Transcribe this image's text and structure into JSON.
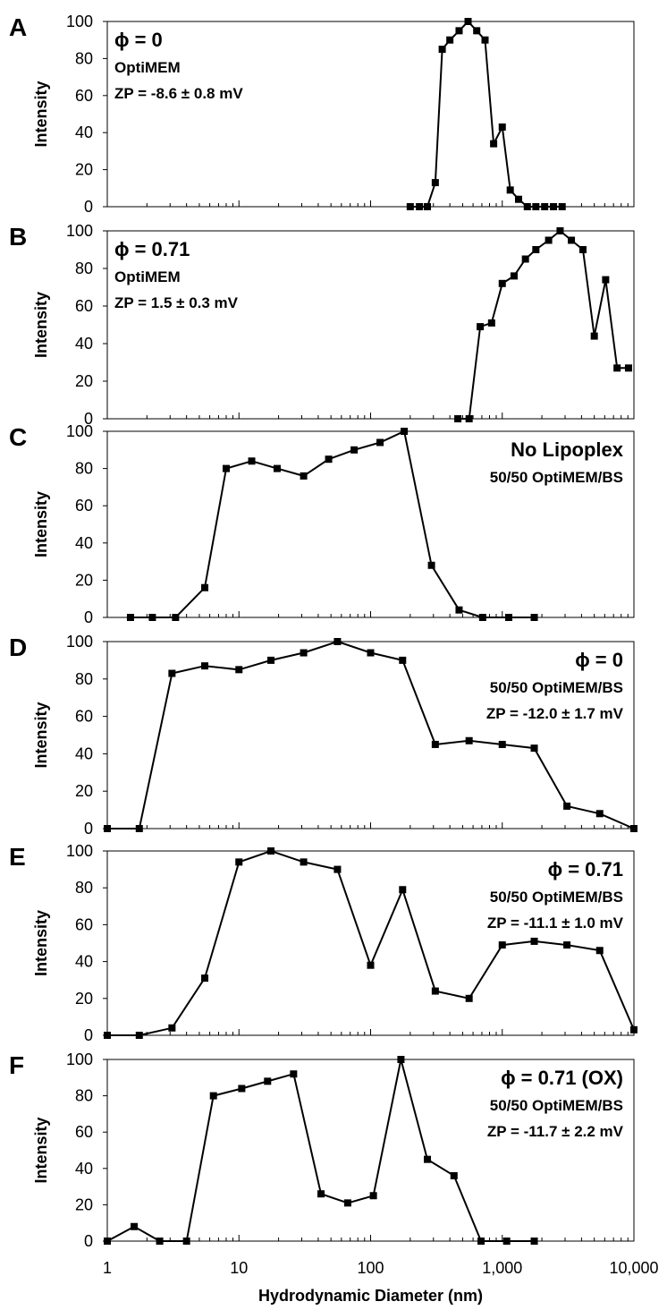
{
  "chart_data": [
    {
      "type": "line",
      "panel_label": "A",
      "ylabel": "Intensity",
      "ylim": [
        0,
        100
      ],
      "yticks": [
        "0",
        "20",
        "40",
        "60",
        "80",
        "100"
      ],
      "xscale": "log",
      "xlim": [
        1,
        10000
      ],
      "legend": null,
      "annotations": [
        "ϕ = 0",
        "OptiMEM",
        "ZP = -8.6 ± 0.8 mV"
      ],
      "annotation_align": "left",
      "series": [
        {
          "x": [
            200,
            235,
            270,
            310,
            350,
            400,
            470,
            550,
            640,
            740,
            860,
            1000,
            1150,
            1330,
            1550,
            1800,
            2100,
            2450,
            2850
          ],
          "y": [
            0,
            0,
            0,
            13,
            85,
            90,
            95,
            100,
            95,
            90,
            34,
            43,
            9,
            4,
            0,
            0,
            0,
            0,
            0
          ]
        }
      ]
    },
    {
      "type": "line",
      "panel_label": "B",
      "ylabel": "Intensity",
      "ylim": [
        0,
        100
      ],
      "yticks": [
        "0",
        "20",
        "40",
        "60",
        "80",
        "100"
      ],
      "xscale": "log",
      "xlim": [
        1,
        10000
      ],
      "legend": null,
      "annotations": [
        "ϕ = 0.71",
        "OptiMEM",
        "ZP = 1.5 ± 0.3 mV"
      ],
      "annotation_align": "left",
      "series": [
        {
          "x": [
            460,
            560,
            680,
            830,
            1000,
            1230,
            1500,
            1800,
            2250,
            2750,
            3350,
            4100,
            5000,
            6100,
            7450,
            9100
          ],
          "y": [
            0,
            0,
            49,
            51,
            72,
            76,
            85,
            90,
            95,
            100,
            95,
            90,
            44,
            74,
            27,
            27
          ]
        }
      ]
    },
    {
      "type": "line",
      "panel_label": "C",
      "ylabel": "Intensity",
      "ylim": [
        0,
        100
      ],
      "yticks": [
        "0",
        "20",
        "40",
        "60",
        "80",
        "100"
      ],
      "xscale": "log",
      "xlim": [
        1,
        10000
      ],
      "legend": null,
      "annotations": [
        "No Lipoplex",
        "50/50 OptiMEM/BS"
      ],
      "annotation_align": "right",
      "series": [
        {
          "x": [
            1.5,
            2.2,
            3.3,
            5.5,
            8,
            12.5,
            19.5,
            31,
            48,
            75,
            118,
            180,
            290,
            470,
            710,
            1120,
            1750
          ],
          "y": [
            0,
            0,
            0,
            16,
            80,
            84,
            80,
            76,
            85,
            90,
            94,
            100,
            28,
            4,
            0,
            0,
            0
          ]
        }
      ]
    },
    {
      "type": "line",
      "panel_label": "D",
      "ylabel": "Intensity",
      "ylim": [
        0,
        100
      ],
      "yticks": [
        "0",
        "20",
        "40",
        "60",
        "80",
        "100"
      ],
      "xscale": "log",
      "xlim": [
        1,
        10000
      ],
      "legend": null,
      "annotations": [
        "ϕ = 0",
        "50/50 OptiMEM/BS",
        "ZP = -12.0 ± 1.7 mV"
      ],
      "annotation_align": "right",
      "series": [
        {
          "x": [
            1,
            1.75,
            3.1,
            5.5,
            10,
            17.5,
            31,
            56,
            100,
            175,
            310,
            560,
            1000,
            1750,
            3100,
            5500,
            10000
          ],
          "y": [
            0,
            0,
            83,
            87,
            85,
            90,
            94,
            100,
            94,
            90,
            45,
            47,
            45,
            43,
            12,
            8,
            0
          ]
        }
      ]
    },
    {
      "type": "line",
      "panel_label": "E",
      "ylabel": "Intensity",
      "ylim": [
        0,
        100
      ],
      "yticks": [
        "0",
        "20",
        "40",
        "60",
        "80",
        "100"
      ],
      "xscale": "log",
      "xlim": [
        1,
        10000
      ],
      "legend": null,
      "annotations": [
        "ϕ = 0.71",
        "50/50 OptiMEM/BS",
        "ZP = -11.1 ± 1.0 mV"
      ],
      "annotation_align": "right",
      "series": [
        {
          "x": [
            1,
            1.75,
            3.1,
            5.5,
            10,
            17.5,
            31,
            56,
            100,
            175,
            310,
            560,
            1000,
            1750,
            3100,
            5500,
            10000
          ],
          "y": [
            0,
            0,
            4,
            31,
            94,
            100,
            94,
            90,
            38,
            79,
            24,
            20,
            49,
            51,
            49,
            46,
            3
          ]
        }
      ]
    },
    {
      "type": "line",
      "panel_label": "F",
      "ylabel": "Intensity",
      "xlabel": "Hydrodynamic Diameter (nm)",
      "ylim": [
        0,
        100
      ],
      "yticks": [
        "0",
        "20",
        "40",
        "60",
        "80",
        "100"
      ],
      "xscale": "log",
      "xlim": [
        1,
        10000
      ],
      "xticks": [
        "1",
        "10",
        "100",
        "1,000",
        "10,000"
      ],
      "legend": null,
      "annotations": [
        "ϕ = 0.71 (OX)",
        "50/50 OptiMEM/BS",
        "ZP = -11.7 ± 2.2 mV"
      ],
      "annotation_align": "right",
      "series": [
        {
          "x": [
            1,
            1.6,
            2.5,
            4,
            6.4,
            10.5,
            16.5,
            26,
            42,
            67,
            105,
            170,
            270,
            430,
            690,
            1080,
            1750
          ],
          "y": [
            0,
            8,
            0,
            0,
            80,
            84,
            88,
            92,
            26,
            21,
            25,
            100,
            45,
            36,
            0,
            0,
            0
          ]
        }
      ]
    }
  ]
}
